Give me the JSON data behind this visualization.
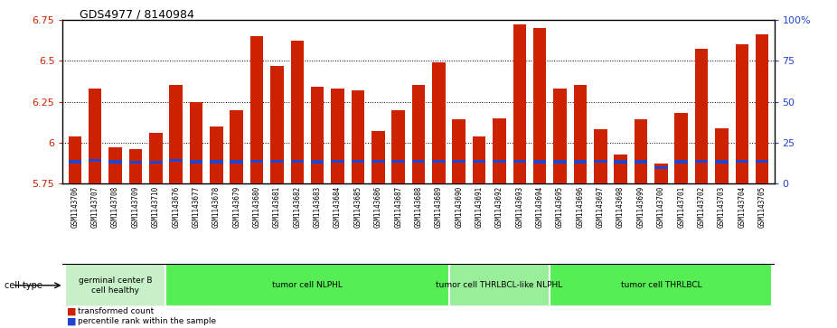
{
  "title": "GDS4977 / 8140984",
  "samples": [
    "GSM1143706",
    "GSM1143707",
    "GSM1143708",
    "GSM1143709",
    "GSM1143710",
    "GSM1143676",
    "GSM1143677",
    "GSM1143678",
    "GSM1143679",
    "GSM1143680",
    "GSM1143681",
    "GSM1143682",
    "GSM1143683",
    "GSM1143684",
    "GSM1143685",
    "GSM1143686",
    "GSM1143687",
    "GSM1143688",
    "GSM1143689",
    "GSM1143690",
    "GSM1143691",
    "GSM1143692",
    "GSM1143693",
    "GSM1143694",
    "GSM1143695",
    "GSM1143696",
    "GSM1143697",
    "GSM1143698",
    "GSM1143699",
    "GSM1143700",
    "GSM1143701",
    "GSM1143702",
    "GSM1143703",
    "GSM1143704",
    "GSM1143705"
  ],
  "red_values": [
    6.04,
    6.33,
    5.97,
    5.96,
    6.06,
    6.35,
    6.25,
    6.1,
    6.2,
    6.65,
    6.47,
    6.62,
    6.34,
    6.33,
    6.32,
    6.07,
    6.2,
    6.35,
    6.49,
    6.14,
    6.04,
    6.15,
    6.72,
    6.7,
    6.33,
    6.35,
    6.08,
    5.93,
    6.14,
    5.87,
    6.18,
    6.57,
    6.09,
    6.6,
    6.66
  ],
  "blue_positions": [
    5.875,
    5.882,
    5.875,
    5.872,
    5.872,
    5.882,
    5.875,
    5.875,
    5.875,
    5.876,
    5.876,
    5.876,
    5.875,
    5.876,
    5.876,
    5.876,
    5.876,
    5.876,
    5.876,
    5.876,
    5.876,
    5.876,
    5.876,
    5.875,
    5.875,
    5.875,
    5.876,
    5.875,
    5.875,
    5.84,
    5.875,
    5.876,
    5.875,
    5.876,
    5.876
  ],
  "cell_groups": [
    {
      "label": "germinal center B\ncell healthy",
      "count": 5,
      "color": "#c8f0c8"
    },
    {
      "label": "tumor cell NLPHL",
      "count": 14,
      "color": "#55ee55"
    },
    {
      "label": "tumor cell THRLBCL-like NLPHL",
      "count": 5,
      "color": "#99ee99"
    },
    {
      "label": "tumor cell THRLBCL",
      "count": 11,
      "color": "#55ee55"
    }
  ],
  "ylim_left": [
    5.75,
    6.75
  ],
  "ylim_right": [
    0,
    100
  ],
  "yticks_left": [
    5.75,
    6.0,
    6.25,
    6.5,
    6.75
  ],
  "ytick_labels_left": [
    "5.75",
    "6",
    "6.25",
    "6.5",
    "6.75"
  ],
  "yticks_right": [
    0,
    25,
    50,
    75,
    100
  ],
  "bar_color": "#cc2200",
  "blue_color": "#2244cc",
  "bg_color": "#d8d8d8",
  "grid_color": "#000000"
}
